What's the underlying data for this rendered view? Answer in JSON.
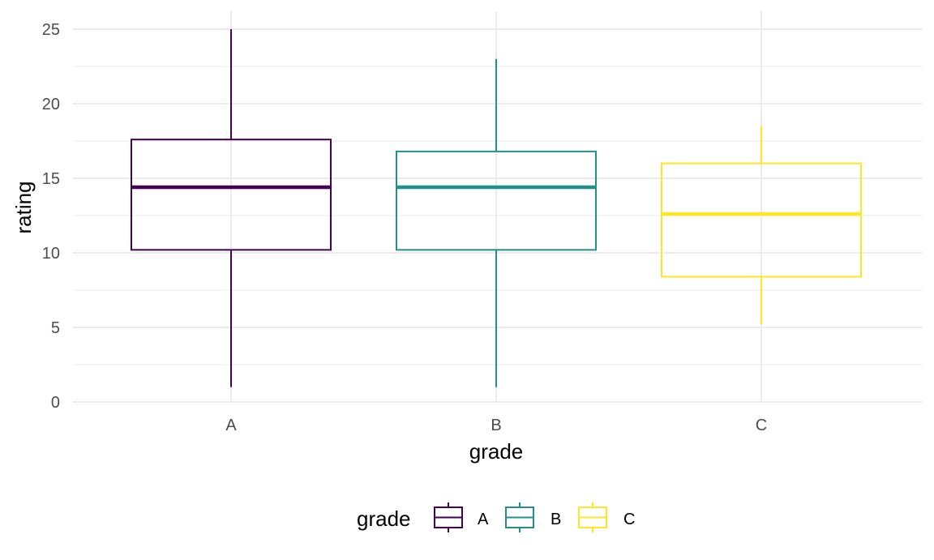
{
  "chart_data": {
    "type": "boxplot",
    "xlabel": "grade",
    "ylabel": "rating",
    "categories": [
      "A",
      "B",
      "C"
    ],
    "colors": [
      "#440154",
      "#21908C",
      "#FDE725"
    ],
    "boxes": [
      {
        "name": "A",
        "min": 1.0,
        "q1": 10.2,
        "median": 14.4,
        "q3": 17.6,
        "max": 25.0
      },
      {
        "name": "B",
        "min": 1.0,
        "q1": 10.2,
        "median": 14.4,
        "q3": 16.8,
        "max": 23.0
      },
      {
        "name": "C",
        "min": 5.2,
        "q1": 8.4,
        "median": 12.6,
        "q3": 16.0,
        "max": 18.5
      }
    ],
    "ylim": [
      0,
      26
    ],
    "yticks": [
      0,
      5,
      10,
      15,
      20,
      25
    ],
    "grid": true,
    "legend": {
      "title": "grade",
      "position": "bottom",
      "items": [
        "A",
        "B",
        "C"
      ]
    }
  }
}
